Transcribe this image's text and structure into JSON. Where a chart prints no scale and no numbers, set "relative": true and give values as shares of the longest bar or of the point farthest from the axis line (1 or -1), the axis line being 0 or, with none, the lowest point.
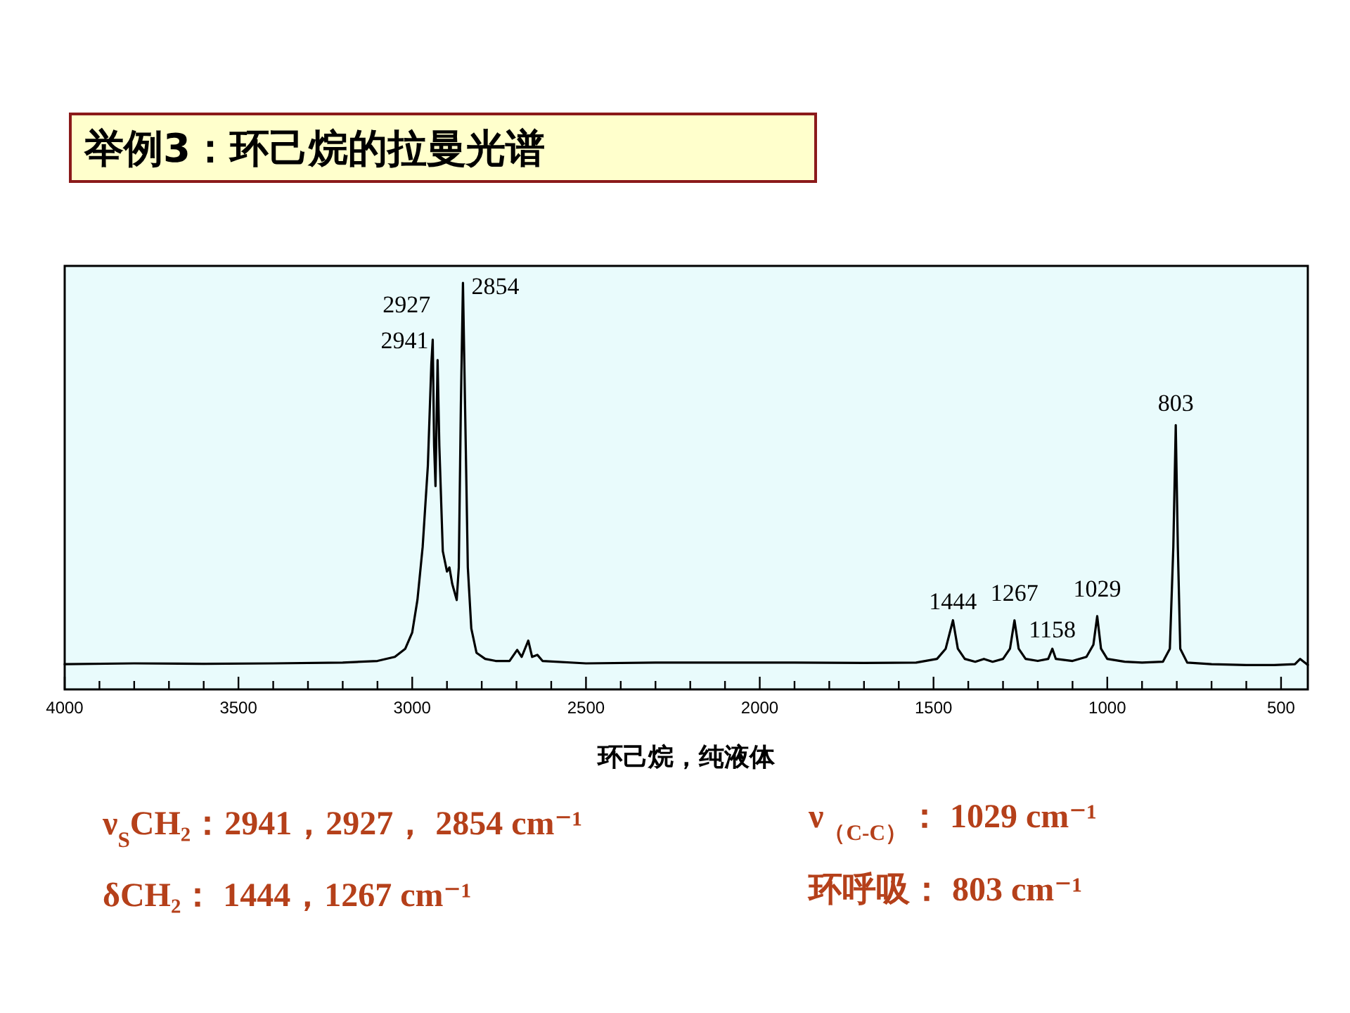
{
  "chart_data": {
    "type": "line",
    "title": "举例3：环己烷的拉曼光谱",
    "xlabel": "环己烷，纯液体",
    "relative": true,
    "tick_labels": "x",
    "xlim": [
      4000,
      423
    ],
    "xticks": [
      4000,
      {
        "value": 3900,
        "label": null
      },
      {
        "value": 3800,
        "label": null
      },
      {
        "value": 3700,
        "label": null
      },
      {
        "value": 3600,
        "label": null
      },
      3500,
      {
        "value": 3400,
        "label": null
      },
      {
        "value": 3300,
        "label": null
      },
      {
        "value": 3200,
        "label": null
      },
      {
        "value": 3100,
        "label": null
      },
      3000,
      {
        "value": 2900,
        "label": null
      },
      {
        "value": 2800,
        "label": null
      },
      {
        "value": 2700,
        "label": null
      },
      {
        "value": 2600,
        "label": null
      },
      2500,
      {
        "value": 2400,
        "label": null
      },
      {
        "value": 2300,
        "label": null
      },
      {
        "value": 2200,
        "label": null
      },
      {
        "value": 2100,
        "label": null
      },
      2000,
      {
        "value": 1900,
        "label": null
      },
      {
        "value": 1800,
        "label": null
      },
      {
        "value": 1700,
        "label": null
      },
      {
        "value": 1600,
        "label": null
      },
      1500,
      {
        "value": 1400,
        "label": null
      },
      {
        "value": 1300,
        "label": null
      },
      {
        "value": 1200,
        "label": null
      },
      {
        "value": 1100,
        "label": null
      },
      1000,
      {
        "value": 900,
        "label": null
      },
      {
        "value": 800,
        "label": null
      },
      {
        "value": 700,
        "label": null
      },
      {
        "value": 600,
        "label": null
      },
      500
    ],
    "series": [
      {
        "color": "#000000",
        "x": [
          4000,
          3800,
          3600,
          3400,
          3200,
          3100,
          3050,
          3020,
          3000,
          2985,
          2970,
          2955,
          2945,
          2941,
          2937,
          2933,
          2927,
          2922,
          2912,
          2900,
          2893,
          2885,
          2872,
          2866,
          2860,
          2854,
          2848,
          2840,
          2830,
          2815,
          2790,
          2760,
          2720,
          2698,
          2685,
          2666,
          2655,
          2640,
          2625,
          2500,
          2300,
          2100,
          1900,
          1700,
          1550,
          1490,
          1465,
          1444,
          1430,
          1410,
          1380,
          1355,
          1330,
          1300,
          1280,
          1267,
          1255,
          1235,
          1200,
          1170,
          1158,
          1148,
          1100,
          1060,
          1040,
          1029,
          1018,
          1000,
          950,
          900,
          840,
          820,
          810,
          803,
          797,
          790,
          770,
          700,
          600,
          520,
          460,
          445,
          430,
          423
        ],
        "values": [
          0.062,
          0.064,
          0.063,
          0.064,
          0.066,
          0.07,
          0.08,
          0.1,
          0.14,
          0.22,
          0.35,
          0.55,
          0.8,
          0.86,
          0.6,
          0.5,
          0.81,
          0.6,
          0.34,
          0.29,
          0.3,
          0.26,
          0.22,
          0.3,
          0.7,
          1.0,
          0.7,
          0.3,
          0.15,
          0.09,
          0.075,
          0.07,
          0.07,
          0.097,
          0.08,
          0.12,
          0.08,
          0.085,
          0.07,
          0.064,
          0.066,
          0.066,
          0.066,
          0.065,
          0.066,
          0.075,
          0.1,
          0.17,
          0.1,
          0.075,
          0.068,
          0.075,
          0.068,
          0.075,
          0.1,
          0.17,
          0.1,
          0.075,
          0.07,
          0.075,
          0.1,
          0.075,
          0.07,
          0.08,
          0.11,
          0.18,
          0.1,
          0.075,
          0.068,
          0.066,
          0.068,
          0.1,
          0.35,
          0.65,
          0.35,
          0.1,
          0.066,
          0.062,
          0.06,
          0.06,
          0.062,
          0.075,
          0.065,
          0.06
        ]
      }
    ],
    "annotations": [
      {
        "text": "2941",
        "x": 2941,
        "y": 0.86
      },
      {
        "text": "2927",
        "x": 2927,
        "y": 0.81
      },
      {
        "text": "2854",
        "x": 2854,
        "y": 1.0
      },
      {
        "text": "1444",
        "x": 1444,
        "y": 0.17
      },
      {
        "text": "1267",
        "x": 1267,
        "y": 0.17
      },
      {
        "text": "1158",
        "x": 1158,
        "y": 0.1
      },
      {
        "text": "1029",
        "x": 1029,
        "y": 0.18
      },
      {
        "text": "803",
        "x": 803,
        "y": 0.65
      },
      "ν$_{S}$CH₂：2941，2927， 2854 cm⁻¹",
      "ν$_{（C-C）}$： 1029 cm⁻¹",
      "δCH₂： 1444，1267 cm⁻¹",
      "环呼吸： 803 cm⁻¹"
    ]
  }
}
